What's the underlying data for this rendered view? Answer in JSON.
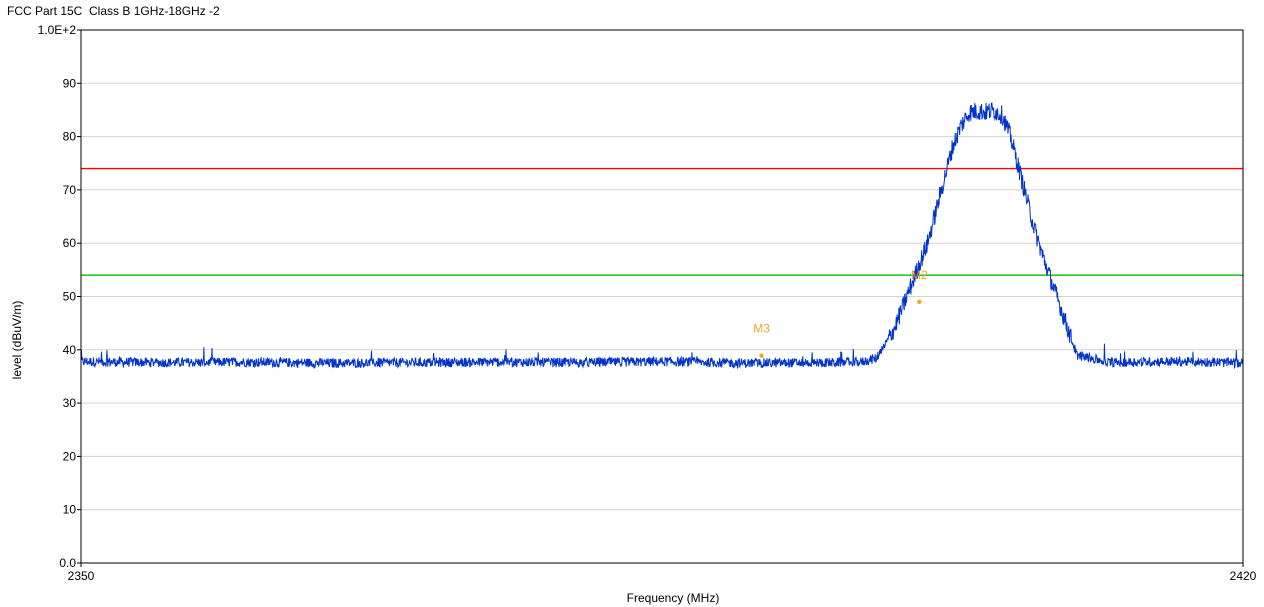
{
  "chart_title": "FCC Part 15C  Class B 1GHz-18GHz -2",
  "chart_data": {
    "type": "line",
    "title": "FCC Part 15C  Class B 1GHz-18GHz -2",
    "xlabel": "Frequency (MHz)",
    "ylabel": "level (dBuV/m)",
    "xlim": [
      2350,
      2420
    ],
    "ylim": [
      0,
      100
    ],
    "x_ticks": [
      "2350",
      "2420"
    ],
    "y_ticks": [
      "0.0",
      "10",
      "20",
      "30",
      "40",
      "50",
      "60",
      "70",
      "80",
      "90",
      "1.0E+2"
    ],
    "grid": true,
    "limit_lines": [
      {
        "level": 74,
        "color": "#ff0000"
      },
      {
        "level": 54,
        "color": "#00c000"
      }
    ],
    "series": [
      {
        "color": "#0033cc",
        "x": [
          2350,
          2355,
          2360,
          2365,
          2370,
          2375,
          2380,
          2385,
          2390,
          2395,
          2397,
          2398,
          2399,
          2400,
          2401,
          2401.5,
          2402,
          2402.5,
          2403,
          2403.5,
          2404,
          2404.5,
          2405,
          2405.5,
          2406,
          2406.5,
          2407,
          2407.5,
          2408,
          2409,
          2410,
          2412,
          2415,
          2418,
          2420
        ],
        "y": [
          37.8,
          37.6,
          37.7,
          37.5,
          37.6,
          37.7,
          37.6,
          37.8,
          37.5,
          37.6,
          37.7,
          38.5,
          44,
          52,
          60,
          66,
          72,
          78,
          82,
          84.5,
          84.8,
          84.6,
          84.9,
          84.0,
          80,
          74,
          68,
          62,
          57,
          48,
          39,
          37.6,
          37.8,
          37.7,
          37.5
        ]
      }
    ],
    "markers": [
      {
        "label": "M3",
        "x": 2391,
        "y": 38.9
      },
      {
        "label": "M2",
        "x": 2400.5,
        "y": 49.0
      }
    ],
    "marker_color": "#f5a623"
  }
}
